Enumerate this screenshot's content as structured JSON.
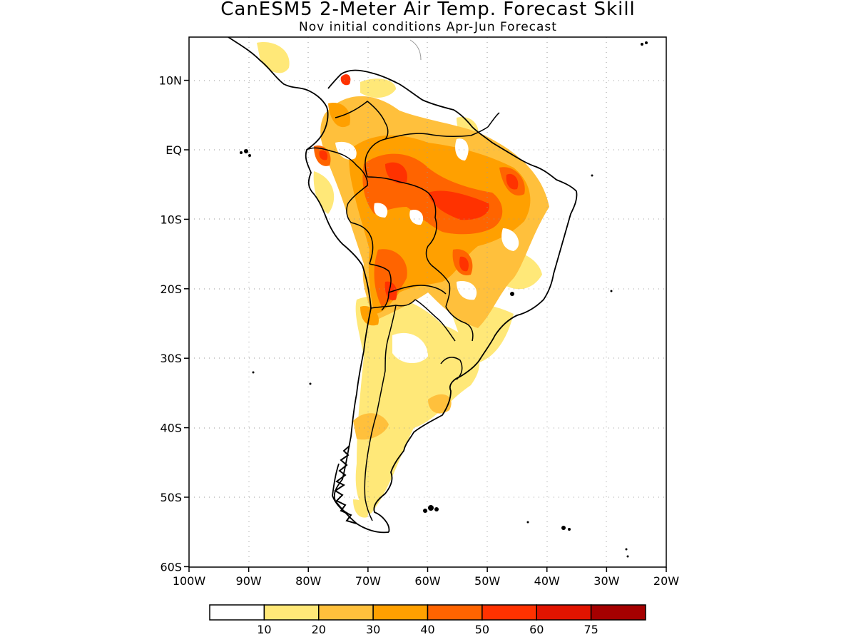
{
  "title": "CanESM5 2-Meter Air Temp. Forecast Skill",
  "subtitle": "Nov initial conditions  Apr-Jun Forecast",
  "lat_labels": [
    {
      "text": "10N",
      "lat": 10
    },
    {
      "text": "EQ",
      "lat": 0
    },
    {
      "text": "10S",
      "lat": -10
    },
    {
      "text": "20S",
      "lat": -20
    },
    {
      "text": "30S",
      "lat": -30
    },
    {
      "text": "40S",
      "lat": -40
    },
    {
      "text": "50S",
      "lat": -50
    },
    {
      "text": "60S",
      "lat": -60
    }
  ],
  "lon_labels": [
    {
      "text": "100W",
      "lon": -100
    },
    {
      "text": "90W",
      "lon": -90
    },
    {
      "text": "80W",
      "lon": -80
    },
    {
      "text": "70W",
      "lon": -70
    },
    {
      "text": "60W",
      "lon": -60
    },
    {
      "text": "50W",
      "lon": -50
    },
    {
      "text": "40W",
      "lon": -40
    },
    {
      "text": "30W",
      "lon": -30
    },
    {
      "text": "20W",
      "lon": -20
    }
  ],
  "colorbar": {
    "colors": [
      "#ffffff",
      "#ffe878",
      "#ffc03c",
      "#ffa000",
      "#ff6400",
      "#ff3200",
      "#e11400",
      "#a50000"
    ],
    "labels": [
      "10",
      "20",
      "30",
      "40",
      "50",
      "60",
      "75"
    ]
  }
}
